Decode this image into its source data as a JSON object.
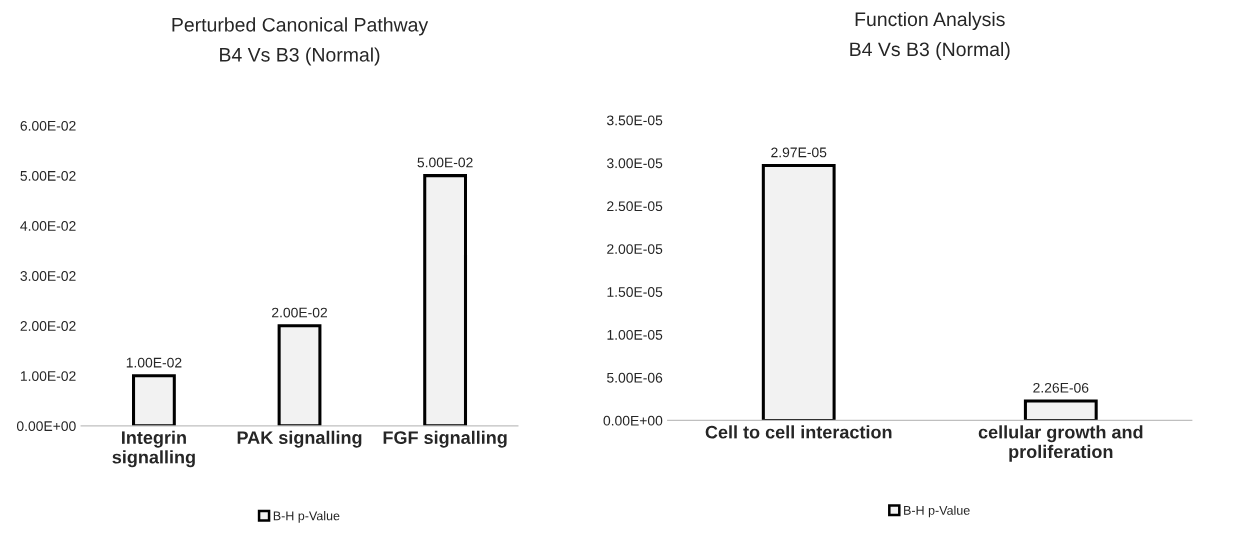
{
  "chart_data": [
    {
      "type": "bar",
      "title": "Perturbed Canonical Pathway",
      "subtitle": "B4 Vs B3 (Normal)",
      "categories": [
        "Integrin\nsignalling",
        "PAK signalling",
        "FGF signalling"
      ],
      "series": [
        {
          "name": "B-H p-Value",
          "color": "#f2f2f2",
          "values": [
            0.01,
            0.02,
            0.05
          ],
          "value_labels": [
            "1.00E-02",
            "2.00E-02",
            "5.00E-02"
          ]
        }
      ],
      "ylim": [
        0,
        0.06
      ],
      "yticks": [
        {
          "value": 0,
          "label": "0.00E+00"
        },
        {
          "value": 0.01,
          "label": "1.00E-02"
        },
        {
          "value": 0.02,
          "label": "2.00E-02"
        },
        {
          "value": 0.03,
          "label": "3.00E-02"
        },
        {
          "value": 0.04,
          "label": "4.00E-02"
        },
        {
          "value": 0.05,
          "label": "5.00E-02"
        },
        {
          "value": 0.06,
          "label": "6.00E-02"
        }
      ],
      "grid": false,
      "legend": "bottom"
    },
    {
      "type": "bar",
      "title": "Function Analysis",
      "subtitle": "B4 Vs B3 (Normal)",
      "categories": [
        "Cell to cell interaction",
        "cellular growth and\nproliferation"
      ],
      "series": [
        {
          "name": "B-H p-Value",
          "color": "#f2f2f2",
          "values": [
            2.97e-05,
            2.26e-06
          ],
          "value_labels": [
            "2.97E-05",
            "2.26E-06"
          ]
        }
      ],
      "ylim": [
        0,
        3.5e-05
      ],
      "yticks": [
        {
          "value": 0,
          "label": "0.00E+00"
        },
        {
          "value": 5e-06,
          "label": "5.00E-06"
        },
        {
          "value": 1e-05,
          "label": "1.00E-05"
        },
        {
          "value": 1.5e-05,
          "label": "1.50E-05"
        },
        {
          "value": 2e-05,
          "label": "2.00E-05"
        },
        {
          "value": 2.5e-05,
          "label": "2.50E-05"
        },
        {
          "value": 3e-05,
          "label": "3.00E-05"
        },
        {
          "value": 3.5e-05,
          "label": "3.50E-05"
        }
      ],
      "grid": false,
      "legend": "bottom"
    }
  ]
}
